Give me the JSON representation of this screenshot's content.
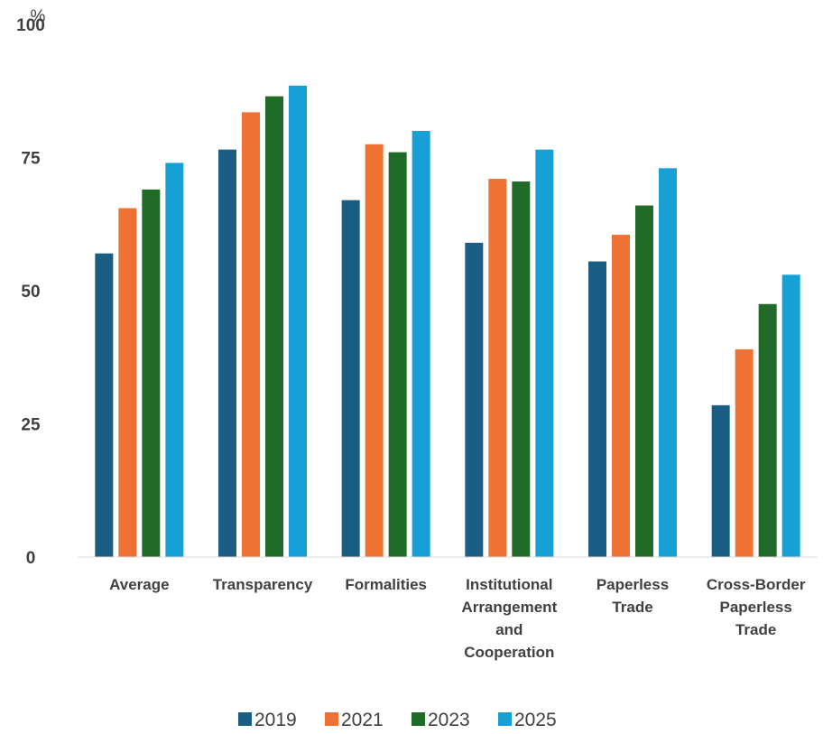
{
  "chart_data": {
    "type": "bar",
    "title": "",
    "xlabel": "",
    "ylabel": "",
    "unit_label": "%",
    "ylim": [
      0,
      100
    ],
    "yticks": [
      0,
      25,
      50,
      75,
      100
    ],
    "grid": false,
    "legend_position": "bottom",
    "categories": [
      [
        "Average"
      ],
      [
        "Transparency"
      ],
      [
        "Formalities"
      ],
      [
        "Institutional",
        "Arrangement",
        "and",
        "Cooperation"
      ],
      [
        "Paperless",
        "Trade"
      ],
      [
        "Cross-Border",
        "Paperless",
        "Trade"
      ]
    ],
    "series": [
      {
        "name": "2019",
        "color": "#1a5e83",
        "values": [
          57.0,
          76.5,
          67.0,
          59.0,
          55.5,
          28.5
        ]
      },
      {
        "name": "2021",
        "color": "#ed7233",
        "values": [
          65.5,
          83.5,
          77.5,
          71.0,
          60.5,
          39.0
        ]
      },
      {
        "name": "2023",
        "color": "#1f6b27",
        "values": [
          69.0,
          86.5,
          76.0,
          70.5,
          66.0,
          47.5
        ]
      },
      {
        "name": "2025",
        "color": "#17a0d6",
        "values": [
          74.0,
          88.5,
          80.0,
          76.5,
          73.0,
          53.0
        ]
      }
    ]
  }
}
